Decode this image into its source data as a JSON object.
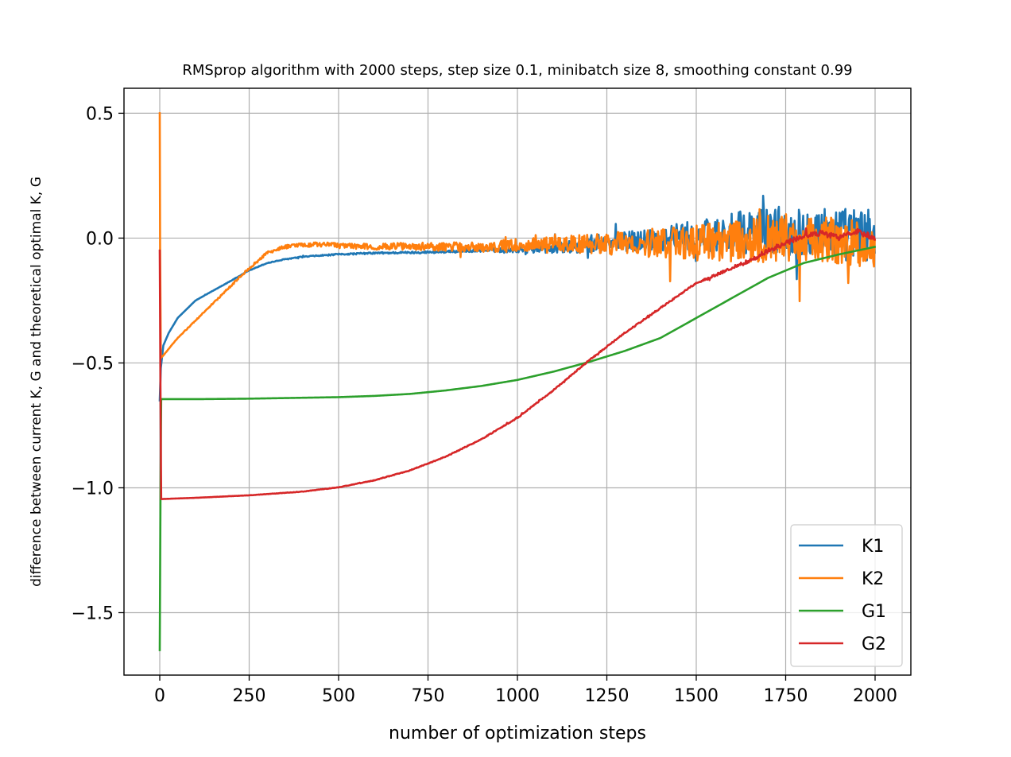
{
  "chart_data": {
    "type": "line",
    "title": "RMSprop algorithm with 2000 steps, step size 0.1, minibatch size 8, smoothing constant 0.99",
    "xlabel": "number of optimization steps",
    "ylabel": "difference between current K, G and theoretical optimal K, G",
    "xlim": [
      -100,
      2100
    ],
    "ylim": [
      -1.75,
      0.6
    ],
    "xticks": [
      0,
      250,
      500,
      750,
      1000,
      1250,
      1500,
      1750,
      2000
    ],
    "xtick_labels": [
      "0",
      "250",
      "500",
      "750",
      "1000",
      "1250",
      "1500",
      "1750",
      "2000"
    ],
    "yticks": [
      0.5,
      0.0,
      -0.5,
      -1.0,
      -1.5
    ],
    "ytick_labels": [
      "0.5",
      "0.0",
      "−0.5",
      "−1.0",
      "−1.5"
    ],
    "grid": true,
    "legend": "lower-right",
    "series": [
      {
        "name": "K1",
        "color": "#1f77b4",
        "noise": [
          [
            0,
            0.0
          ],
          [
            900,
            0.005
          ],
          [
            1200,
            0.03
          ],
          [
            1500,
            0.06
          ],
          [
            1700,
            0.1
          ],
          [
            2000,
            0.11
          ]
        ],
        "points": [
          [
            0,
            -0.65
          ],
          [
            3,
            -0.52
          ],
          [
            10,
            -0.43
          ],
          [
            25,
            -0.38
          ],
          [
            50,
            -0.32
          ],
          [
            100,
            -0.25
          ],
          [
            150,
            -0.21
          ],
          [
            200,
            -0.17
          ],
          [
            250,
            -0.13
          ],
          [
            300,
            -0.1
          ],
          [
            350,
            -0.085
          ],
          [
            400,
            -0.075
          ],
          [
            450,
            -0.07
          ],
          [
            500,
            -0.065
          ],
          [
            600,
            -0.06
          ],
          [
            700,
            -0.058
          ],
          [
            800,
            -0.055
          ],
          [
            900,
            -0.05
          ],
          [
            1000,
            -0.045
          ],
          [
            1100,
            -0.04
          ],
          [
            1200,
            -0.03
          ],
          [
            1300,
            -0.015
          ],
          [
            1400,
            0.0
          ],
          [
            1500,
            0.01
          ],
          [
            1600,
            0.02
          ],
          [
            1700,
            0.03
          ],
          [
            1800,
            0.03
          ],
          [
            1900,
            0.02
          ],
          [
            2000,
            0.0
          ]
        ]
      },
      {
        "name": "K2",
        "color": "#ff7f0e",
        "noise": [
          [
            0,
            0.0
          ],
          [
            250,
            0.005
          ],
          [
            600,
            0.012
          ],
          [
            900,
            0.02
          ],
          [
            1200,
            0.04
          ],
          [
            1500,
            0.07
          ],
          [
            1700,
            0.1
          ],
          [
            2000,
            0.1
          ]
        ],
        "points": [
          [
            0,
            0.5
          ],
          [
            1,
            -0.05
          ],
          [
            3,
            -0.48
          ],
          [
            10,
            -0.47
          ],
          [
            50,
            -0.4
          ],
          [
            100,
            -0.33
          ],
          [
            150,
            -0.26
          ],
          [
            200,
            -0.19
          ],
          [
            250,
            -0.12
          ],
          [
            300,
            -0.06
          ],
          [
            350,
            -0.035
          ],
          [
            400,
            -0.028
          ],
          [
            450,
            -0.025
          ],
          [
            500,
            -0.03
          ],
          [
            600,
            -0.035
          ],
          [
            700,
            -0.032
          ],
          [
            800,
            -0.035
          ],
          [
            900,
            -0.035
          ],
          [
            1000,
            -0.03
          ],
          [
            1100,
            -0.028
          ],
          [
            1200,
            -0.025
          ],
          [
            1300,
            -0.02
          ],
          [
            1400,
            -0.02
          ],
          [
            1500,
            -0.02
          ],
          [
            1600,
            -0.01
          ],
          [
            1700,
            0.0
          ],
          [
            1800,
            0.0
          ],
          [
            1900,
            -0.01
          ],
          [
            2000,
            -0.02
          ]
        ]
      },
      {
        "name": "G1",
        "color": "#2ca02c",
        "noise": [],
        "points": [
          [
            0,
            -1.65
          ],
          [
            2,
            -1.05
          ],
          [
            4,
            -0.645
          ],
          [
            100,
            -0.645
          ],
          [
            250,
            -0.643
          ],
          [
            500,
            -0.637
          ],
          [
            600,
            -0.632
          ],
          [
            700,
            -0.624
          ],
          [
            800,
            -0.61
          ],
          [
            900,
            -0.592
          ],
          [
            1000,
            -0.568
          ],
          [
            1100,
            -0.535
          ],
          [
            1200,
            -0.496
          ],
          [
            1300,
            -0.452
          ],
          [
            1400,
            -0.4
          ],
          [
            1500,
            -0.32
          ],
          [
            1600,
            -0.24
          ],
          [
            1700,
            -0.16
          ],
          [
            1800,
            -0.1
          ],
          [
            1900,
            -0.065
          ],
          [
            2000,
            -0.035
          ]
        ]
      },
      {
        "name": "G2",
        "color": "#d62728",
        "noise": [
          [
            0,
            0.0
          ],
          [
            1500,
            0.003
          ],
          [
            1700,
            0.01
          ],
          [
            2000,
            0.012
          ]
        ],
        "points": [
          [
            0,
            -0.05
          ],
          [
            2,
            -0.6
          ],
          [
            4,
            -1.045
          ],
          [
            100,
            -1.04
          ],
          [
            250,
            -1.03
          ],
          [
            400,
            -1.015
          ],
          [
            500,
            -0.998
          ],
          [
            600,
            -0.97
          ],
          [
            700,
            -0.93
          ],
          [
            800,
            -0.875
          ],
          [
            900,
            -0.805
          ],
          [
            1000,
            -0.72
          ],
          [
            1100,
            -0.61
          ],
          [
            1200,
            -0.49
          ],
          [
            1300,
            -0.38
          ],
          [
            1400,
            -0.28
          ],
          [
            1500,
            -0.18
          ],
          [
            1550,
            -0.15
          ],
          [
            1600,
            -0.12
          ],
          [
            1650,
            -0.09
          ],
          [
            1700,
            -0.05
          ],
          [
            1750,
            -0.02
          ],
          [
            1800,
            0.01
          ],
          [
            1850,
            0.02
          ],
          [
            1900,
            0.0
          ],
          [
            1950,
            0.03
          ],
          [
            2000,
            0.0
          ]
        ]
      }
    ]
  }
}
